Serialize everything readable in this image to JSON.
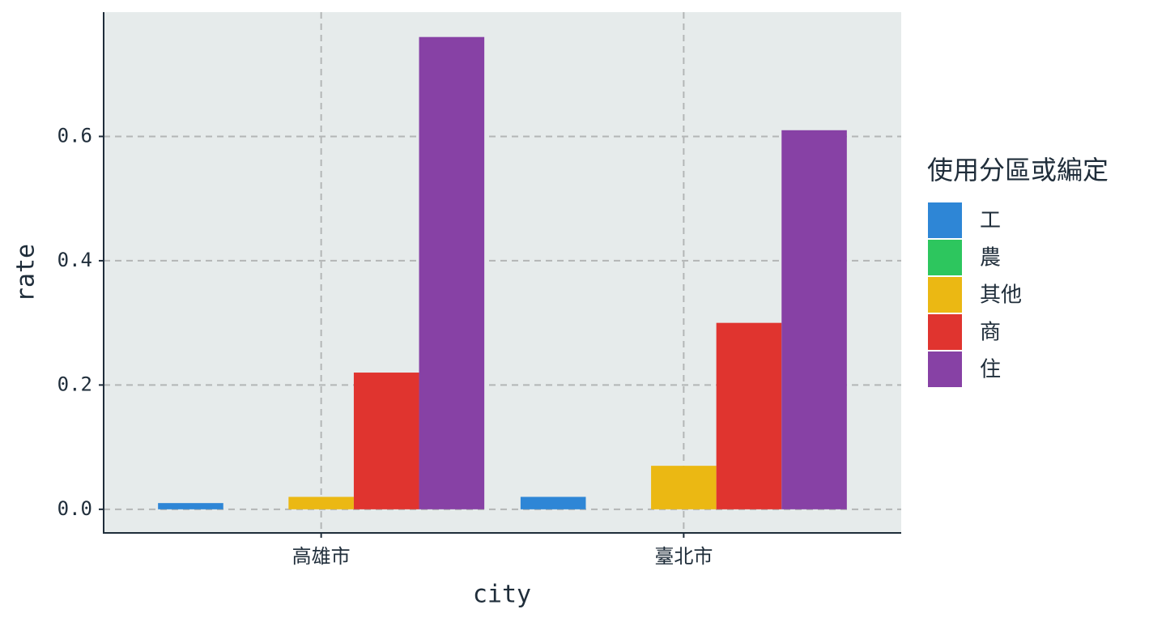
{
  "chart_data": {
    "type": "bar",
    "x_label": "city",
    "y_label": "rate",
    "categories": [
      "高雄市",
      "臺北市"
    ],
    "series": [
      {
        "name": "工",
        "color": "#2e86d6",
        "values": [
          0.01,
          0.02
        ]
      },
      {
        "name": "農",
        "color": "#2dc65e",
        "values": [
          0,
          0
        ]
      },
      {
        "name": "其他",
        "color": "#ebb813",
        "values": [
          0.02,
          0.07
        ]
      },
      {
        "name": "商",
        "color": "#e0342f",
        "values": [
          0.22,
          0.3
        ]
      },
      {
        "name": "住",
        "color": "#8741a5",
        "values": [
          0.76,
          0.61
        ]
      }
    ],
    "legend_title": "使用分區或編定",
    "legend_position": "right",
    "ylim": [
      -0.038,
      0.8
    ],
    "yticks": [
      {
        "value": 0,
        "label": "0.0"
      },
      0.2,
      0.4,
      0.6
    ],
    "grid": true
  }
}
